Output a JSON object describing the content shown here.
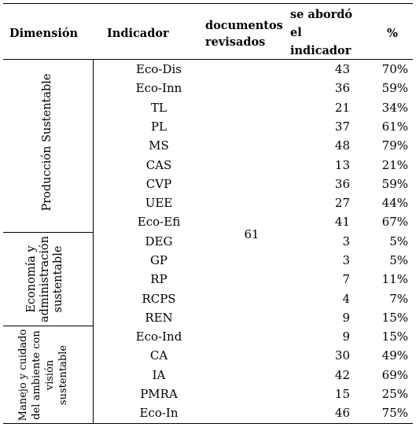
{
  "headers": {
    "dimension": "Dimensión",
    "indicator": "Indicador",
    "documents": [
      "documentos",
      "revisados"
    ],
    "addressed": [
      "se abordó",
      "el",
      "indicador"
    ],
    "percent": "%"
  },
  "documents_reviewed": "61",
  "dimensions": [
    {
      "label_lines": [
        "Producción Sustentable"
      ]
    },
    {
      "label_lines": [
        "Economía y",
        "administración",
        "sustentable"
      ]
    },
    {
      "label_lines": [
        "Manejo y cuidado",
        "del ambiente con",
        "visión",
        "sustentable"
      ]
    }
  ],
  "rows": [
    {
      "indicator": "Eco-Dis",
      "count": "43",
      "percent": "70%"
    },
    {
      "indicator": "Eco-Inn",
      "count": "36",
      "percent": "59%"
    },
    {
      "indicator": "TL",
      "count": "21",
      "percent": "34%"
    },
    {
      "indicator": "PL",
      "count": "37",
      "percent": "61%"
    },
    {
      "indicator": "MS",
      "count": "48",
      "percent": "79%"
    },
    {
      "indicator": "CAS",
      "count": "13",
      "percent": "21%"
    },
    {
      "indicator": "CVP",
      "count": "36",
      "percent": "59%"
    },
    {
      "indicator": "UEE",
      "count": "27",
      "percent": "44%"
    },
    {
      "indicator": "Eco-Efi",
      "count": "41",
      "percent": "67%"
    },
    {
      "indicator": "DEG",
      "count": "3",
      "percent": "5%"
    },
    {
      "indicator": "GP",
      "count": "3",
      "percent": "5%"
    },
    {
      "indicator": "RP",
      "count": "7",
      "percent": "11%"
    },
    {
      "indicator": "RCPS",
      "count": "4",
      "percent": "7%"
    },
    {
      "indicator": "REN",
      "count": "9",
      "percent": "15%"
    },
    {
      "indicator": "Eco-Ind",
      "count": "9",
      "percent": "15%"
    },
    {
      "indicator": "CA",
      "count": "30",
      "percent": "49%"
    },
    {
      "indicator": "IA",
      "count": "42",
      "percent": "69%"
    },
    {
      "indicator": "PMRA",
      "count": "15",
      "percent": "25%"
    },
    {
      "indicator": "Eco-In",
      "count": "46",
      "percent": "75%"
    }
  ]
}
